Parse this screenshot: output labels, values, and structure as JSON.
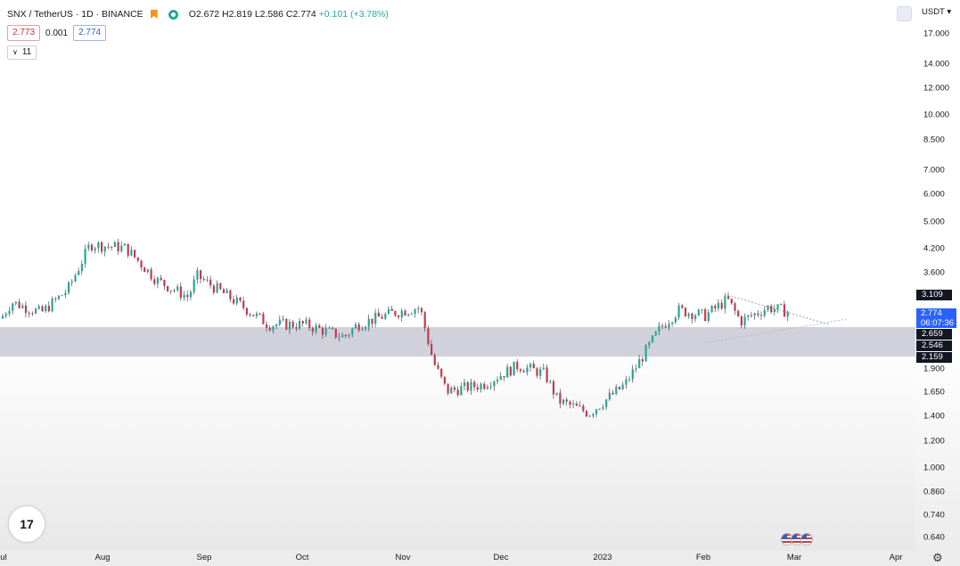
{
  "header": {
    "symbol": "SNX / TetherUS · 1D · BINANCE",
    "ohlc": "O2.672  H2.819  L2.586  C2.774",
    "change": "+0.101 (+3.78%)",
    "sell_price": "2.773",
    "spread": "0.001",
    "buy_price": "2.774",
    "indicator_count": "11",
    "currency": "USDT"
  },
  "price_axis": {
    "ticks": [
      "17.000",
      "14.000",
      "12.000",
      "10.000",
      "8.500",
      "7.000",
      "6.000",
      "5.000",
      "4.200",
      "3.600",
      "1.900",
      "1.650",
      "1.400",
      "1.200",
      "1.000",
      "0.860",
      "0.740",
      "0.640"
    ],
    "labels": {
      "p3109": "3.109",
      "current": "2.774",
      "countdown": "06:07:36",
      "p2659": "2.659",
      "p2546": "2.546",
      "p2159": "2.159"
    }
  },
  "time_axis": {
    "labels": [
      "ul",
      "Aug",
      "Sep",
      "Oct",
      "Nov",
      "Dec",
      "2023",
      "Feb",
      "Mar",
      "Apr"
    ]
  },
  "colors": {
    "up": "#26a69a",
    "down": "#c43a4e",
    "zone": "#c8c9d4",
    "current": "#2962ff"
  },
  "icons": {
    "logo": "tradingview-logo-icon",
    "flags": "us-flag-icon",
    "settings": "gear-icon",
    "visibility": "eye-icon"
  },
  "chart_data": {
    "type": "candlestick",
    "title": "SNX / TetherUS · 1D · BINANCE",
    "ylabel": "USDT",
    "scale": "log",
    "x": [
      "Jul",
      "Aug",
      "Sep",
      "Oct",
      "Nov",
      "Dec",
      "Jan",
      "Feb",
      "Mar"
    ],
    "close_approx": [
      2.9,
      4.1,
      3.1,
      2.5,
      2.9,
      1.6,
      1.5,
      2.9,
      2.77
    ],
    "zone": {
      "top": 2.659,
      "bottom": 2.159
    },
    "current_price": 2.774,
    "ohlc_last": {
      "open": 2.672,
      "high": 2.819,
      "low": 2.586,
      "close": 2.774
    }
  }
}
